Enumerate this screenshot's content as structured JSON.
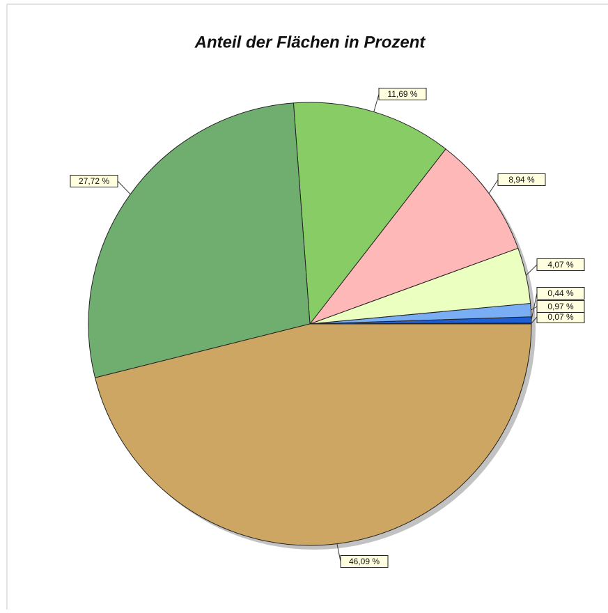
{
  "chart_data": {
    "type": "pie",
    "title": "Anteil der Flächen in Prozent",
    "values": [
      0.07,
      0.44,
      0.97,
      4.07,
      8.94,
      11.69,
      27.72,
      46.09
    ],
    "value_labels": [
      "0,07 %",
      "0,44 %",
      "0,97 %",
      "4,07 %",
      "8,94 %",
      "11,69 %",
      "27,72 %",
      "46,09 %"
    ],
    "colors": [
      "#0a2a8a",
      "#1f5fd6",
      "#79aef5",
      "#eaffc0",
      "#ffb8b8",
      "#88cc66",
      "#70ae70",
      "#cda663"
    ]
  }
}
